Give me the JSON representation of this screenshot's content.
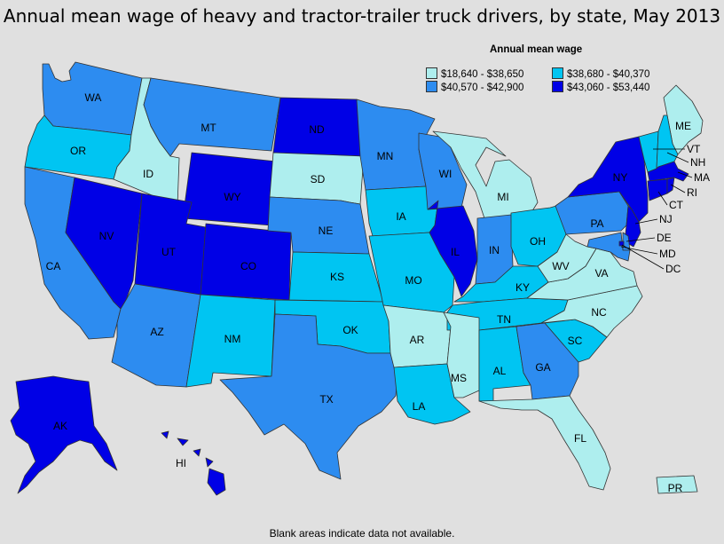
{
  "title": "Annual mean wage of heavy and tractor-trailer truck drivers, by state, May 2013",
  "footnote": "Blank areas indicate data not available.",
  "legend": {
    "title": "Annual mean wage",
    "items": [
      {
        "label": "$18,640 - $38,650",
        "color": "#aeeeee"
      },
      {
        "label": "$38,680 - $40,370",
        "color": "#00c5f2"
      },
      {
        "label": "$40,570 - $42,900",
        "color": "#2d8cf0"
      },
      {
        "label": "$43,060 - $53,440",
        "color": "#0000e6"
      }
    ]
  },
  "chart_data": {
    "type": "choropleth",
    "title": "Annual mean wage of heavy and tractor-trailer truck drivers, by state, May 2013",
    "legend_title": "Annual mean wage",
    "legend_placement": "top-right",
    "bins": [
      "$18,640 - $38,650",
      "$38,680 - $40,370",
      "$40,570 - $42,900",
      "$43,060 - $53,440"
    ],
    "states": [
      {
        "code": "WA",
        "bin": 2
      },
      {
        "code": "OR",
        "bin": 1
      },
      {
        "code": "CA",
        "bin": 2
      },
      {
        "code": "ID",
        "bin": 0
      },
      {
        "code": "NV",
        "bin": 3
      },
      {
        "code": "MT",
        "bin": 2
      },
      {
        "code": "WY",
        "bin": 3
      },
      {
        "code": "UT",
        "bin": 3
      },
      {
        "code": "CO",
        "bin": 3
      },
      {
        "code": "AZ",
        "bin": 2
      },
      {
        "code": "NM",
        "bin": 1
      },
      {
        "code": "ND",
        "bin": 3
      },
      {
        "code": "SD",
        "bin": 0
      },
      {
        "code": "NE",
        "bin": 2
      },
      {
        "code": "KS",
        "bin": 1
      },
      {
        "code": "OK",
        "bin": 1
      },
      {
        "code": "TX",
        "bin": 2
      },
      {
        "code": "MN",
        "bin": 2
      },
      {
        "code": "IA",
        "bin": 1
      },
      {
        "code": "MO",
        "bin": 1
      },
      {
        "code": "AR",
        "bin": 0
      },
      {
        "code": "LA",
        "bin": 1
      },
      {
        "code": "WI",
        "bin": 2
      },
      {
        "code": "IL",
        "bin": 3
      },
      {
        "code": "MI",
        "bin": 0
      },
      {
        "code": "IN",
        "bin": 2
      },
      {
        "code": "OH",
        "bin": 1
      },
      {
        "code": "KY",
        "bin": 1
      },
      {
        "code": "TN",
        "bin": 1
      },
      {
        "code": "MS",
        "bin": 0
      },
      {
        "code": "AL",
        "bin": 1
      },
      {
        "code": "GA",
        "bin": 2
      },
      {
        "code": "FL",
        "bin": 0
      },
      {
        "code": "SC",
        "bin": 1
      },
      {
        "code": "NC",
        "bin": 0
      },
      {
        "code": "VA",
        "bin": 0
      },
      {
        "code": "WV",
        "bin": 0
      },
      {
        "code": "PA",
        "bin": 2
      },
      {
        "code": "NY",
        "bin": 3
      },
      {
        "code": "ME",
        "bin": 0
      },
      {
        "code": "VT",
        "bin": 1
      },
      {
        "code": "NH",
        "bin": 1
      },
      {
        "code": "MA",
        "bin": 3
      },
      {
        "code": "CT",
        "bin": 3
      },
      {
        "code": "RI",
        "bin": 3
      },
      {
        "code": "NJ",
        "bin": 3
      },
      {
        "code": "DE",
        "bin": 2
      },
      {
        "code": "MD",
        "bin": 2
      },
      {
        "code": "DC",
        "bin": 3
      },
      {
        "code": "AK",
        "bin": 3
      },
      {
        "code": "HI",
        "bin": 3
      },
      {
        "code": "PR",
        "bin": 0
      }
    ]
  }
}
